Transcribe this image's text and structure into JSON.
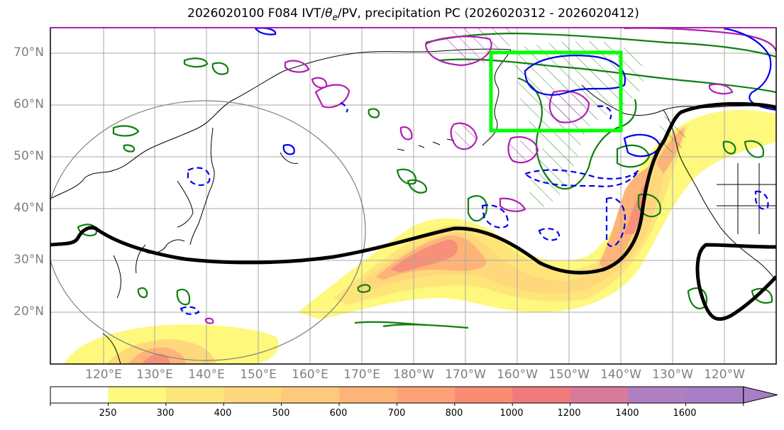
{
  "title_prefix": "2026020100 F084 IVT/",
  "title_theta": "θ",
  "title_theta_sub": "e",
  "title_suffix": "/PV, precipitation PC (2026020312 - 2026020412)",
  "lat_labels": [
    "70°N",
    "60°N",
    "50°N",
    "40°N",
    "30°N",
    "20°N"
  ],
  "lon_labels": [
    "120°E",
    "130°E",
    "140°E",
    "150°E",
    "160°E",
    "170°E",
    "180°W",
    "170°W",
    "160°W",
    "150°W",
    "140°W",
    "130°W",
    "120°W"
  ],
  "colorbar": {
    "ticks": [
      "250",
      "300",
      "400",
      "500",
      "600",
      "700",
      "800",
      "1000",
      "1200",
      "1400",
      "1600"
    ],
    "colors": [
      "#ffffff",
      "#fef87c",
      "#fee57a",
      "#fed87a",
      "#fec97a",
      "#feb478",
      "#fea177",
      "#fb8c74",
      "#f17b7b",
      "#d97a9b",
      "#b07fc2",
      "#a87fc6"
    ]
  },
  "highlight_box_color": "#00ff00"
}
